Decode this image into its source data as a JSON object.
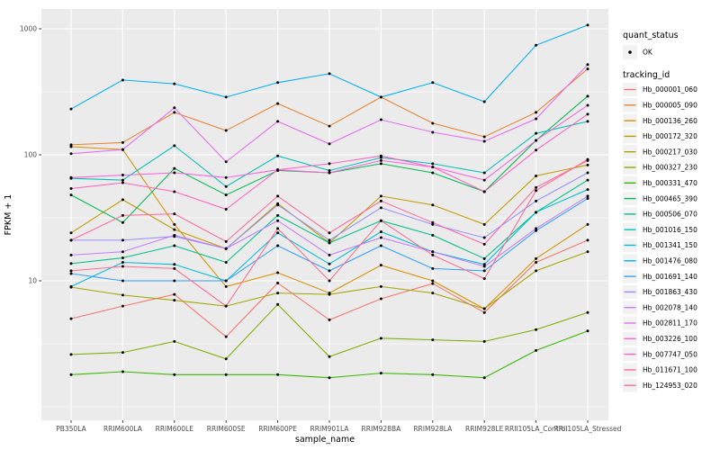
{
  "chart_data": {
    "type": "line",
    "title": "",
    "xlabel": "sample_name",
    "ylabel": "FPKM + 1",
    "y_scale": "log10",
    "grid": true,
    "panel_bg": "#EBEBEB",
    "grid_color": "#FFFFFF",
    "point_color": "#000000",
    "legend_position": "right",
    "legend_key_bg": "#F2F2F2",
    "y_tick_labels": [
      "10",
      "100",
      "1000"
    ],
    "y_major_breaks": [
      10,
      100,
      1000
    ],
    "y_minor_breaks": [
      1,
      3.16,
      31.6,
      316
    ],
    "ylim_log": [
      -0.11,
      3.16
    ],
    "x_categories": [
      "PB350LA",
      "RRIM600LA",
      "RRIM600LE",
      "RRIM600SE",
      "RRIM600PE",
      "RRIM901LA",
      "RRIM928BA",
      "RRIM928LA",
      "RRIM928LE",
      "RRII105LA_Control",
      "RRII105LA_Stressed"
    ],
    "legend_quant": {
      "title": "quant_status",
      "items": [
        {
          "label": "OK",
          "marker": "point-icon",
          "color": "#000000"
        }
      ]
    },
    "legend_tracking_title": "tracking_id",
    "series": [
      {
        "name": "Hb_000001_060",
        "color": "#F8766D",
        "values": [
          5.0,
          6.3,
          7.8,
          3.6,
          9.6,
          4.9,
          7.2,
          9.5,
          5.6,
          14,
          21
        ]
      },
      {
        "name": "Hb_000005_090",
        "color": "#EA8331",
        "values": [
          120,
          125,
          217,
          156,
          255,
          169,
          287,
          178,
          139,
          217,
          480
        ]
      },
      {
        "name": "Hb_000136_260",
        "color": "#D89000",
        "values": [
          116,
          110,
          28,
          9,
          11.6,
          8.0,
          13.3,
          10,
          6.0,
          15,
          28
        ]
      },
      {
        "name": "Hb_000172_320",
        "color": "#C09B00",
        "values": [
          24,
          44,
          25.5,
          18,
          41,
          20,
          47,
          40,
          28,
          68,
          83
        ]
      },
      {
        "name": "Hb_000217_030",
        "color": "#A3A500",
        "values": [
          8.9,
          7.7,
          7.0,
          6.3,
          8.0,
          7.8,
          9.0,
          8.0,
          6.0,
          12,
          17
        ]
      },
      {
        "name": "Hb_000327_230",
        "color": "#7CAE00",
        "values": [
          2.6,
          2.7,
          3.3,
          2.4,
          6.5,
          2.5,
          3.5,
          3.4,
          3.3,
          4.1,
          5.6
        ]
      },
      {
        "name": "Hb_000331_470",
        "color": "#39B600",
        "values": [
          1.8,
          1.9,
          1.8,
          1.8,
          1.8,
          1.7,
          1.85,
          1.8,
          1.7,
          2.8,
          4.0
        ]
      },
      {
        "name": "Hb_000465_390",
        "color": "#00BB4E",
        "values": [
          48,
          29,
          78,
          48,
          75,
          72,
          85,
          72,
          51,
          130,
          292
        ]
      },
      {
        "name": "Hb_000506_070",
        "color": "#00C087",
        "values": [
          13.7,
          15.2,
          19,
          14,
          33,
          20,
          30,
          23,
          15,
          35,
          63
        ]
      },
      {
        "name": "Hb_001016_150",
        "color": "#00C0B8",
        "values": [
          65,
          63,
          118,
          56,
          98,
          75,
          95,
          85,
          72,
          148,
          184
        ]
      },
      {
        "name": "Hb_001341_150",
        "color": "#00BCD8",
        "values": [
          9.0,
          14,
          13.5,
          10,
          24,
          13.6,
          24.5,
          17,
          13.5,
          35,
          53
        ]
      },
      {
        "name": "Hb_001476_080",
        "color": "#00B0F6",
        "values": [
          231,
          392,
          366,
          287,
          374,
          440,
          287,
          374,
          264,
          740,
          1070
        ]
      },
      {
        "name": "Hb_001691_140",
        "color": "#35A2FF",
        "values": [
          11.4,
          10,
          10,
          10,
          19,
          12,
          19,
          12.5,
          12,
          25,
          45
        ]
      },
      {
        "name": "Hb_001863_430",
        "color": "#9590FF",
        "values": [
          21,
          21,
          22.5,
          18,
          40,
          21,
          38,
          28,
          22,
          43,
          72
        ]
      },
      {
        "name": "Hb_002078_140",
        "color": "#C77CFF",
        "values": [
          16,
          17,
          23,
          18,
          30,
          16,
          22,
          17,
          13,
          26,
          47
        ]
      },
      {
        "name": "Hb_002811_170",
        "color": "#E76BF3",
        "values": [
          102,
          110,
          236,
          88,
          184,
          122,
          190,
          151,
          128,
          193,
          520
        ]
      },
      {
        "name": "Hb_003226_100",
        "color": "#FA62DB",
        "values": [
          66,
          69,
          72,
          66,
          76,
          72,
          90,
          80,
          63,
          130,
          247
        ]
      },
      {
        "name": "Hb_007747_050",
        "color": "#FF61C2",
        "values": [
          54,
          60,
          51,
          37,
          76,
          85,
          98,
          80,
          51,
          109,
          210
        ]
      },
      {
        "name": "Hb_011671_100",
        "color": "#FF689F",
        "values": [
          21,
          33,
          34,
          20.5,
          47,
          24,
          43,
          29,
          19.5,
          55,
          90
        ]
      },
      {
        "name": "Hb_124953_020",
        "color": "#FF6C91",
        "values": [
          12,
          13,
          12.5,
          6.3,
          26,
          10,
          30,
          16,
          10.4,
          52,
          92
        ]
      }
    ]
  }
}
